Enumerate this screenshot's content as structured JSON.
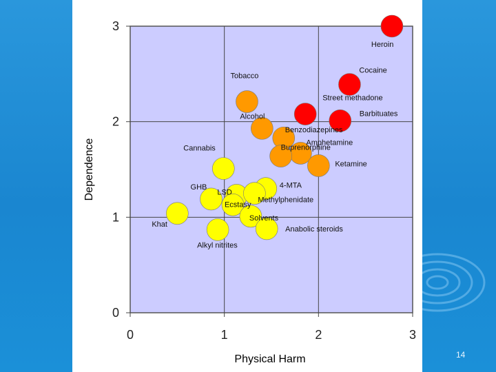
{
  "slide": {
    "page_number": "14",
    "background_color": "#1f8fd6"
  },
  "chart_data": {
    "type": "scatter",
    "title": "",
    "xlabel": "Physical Harm",
    "ylabel": "Dependence",
    "xlim": [
      0,
      3
    ],
    "ylim": [
      0,
      3
    ],
    "xticks": [
      "0",
      "1",
      "2",
      "3"
    ],
    "yticks": [
      "0",
      "1",
      "2",
      "3"
    ],
    "grid": true,
    "legend": "none",
    "colors": {
      "plot_background": "#ccccff",
      "high": "#ff0000",
      "medium": "#ff9900",
      "low": "#ffff00"
    },
    "points": [
      {
        "name": "Heroin",
        "x": 2.78,
        "y": 3.0,
        "group": "high"
      },
      {
        "name": "Cocaine",
        "x": 2.33,
        "y": 2.39,
        "group": "high"
      },
      {
        "name": "Street methadone",
        "x": 1.86,
        "y": 2.08,
        "group": "high"
      },
      {
        "name": "Barbituates",
        "x": 2.23,
        "y": 2.01,
        "group": "high"
      },
      {
        "name": "Tobacco",
        "x": 1.24,
        "y": 2.21,
        "group": "medium"
      },
      {
        "name": "Alcohol",
        "x": 1.4,
        "y": 1.93,
        "group": "medium"
      },
      {
        "name": "Benzodiazepines",
        "x": 1.63,
        "y": 1.83,
        "group": "medium"
      },
      {
        "name": "Amphetamine",
        "x": 1.81,
        "y": 1.67,
        "group": "medium"
      },
      {
        "name": "Buprenorphine",
        "x": 1.6,
        "y": 1.64,
        "group": "medium"
      },
      {
        "name": "Ketamine",
        "x": 2.0,
        "y": 1.54,
        "group": "medium"
      },
      {
        "name": "Cannabis",
        "x": 0.99,
        "y": 1.51,
        "group": "low"
      },
      {
        "name": "4-MTA",
        "x": 1.44,
        "y": 1.3,
        "group": "low"
      },
      {
        "name": "LSD",
        "x": 1.13,
        "y": 1.23,
        "group": "low"
      },
      {
        "name": "Methylphenidate",
        "x": 1.32,
        "y": 1.25,
        "group": "low"
      },
      {
        "name": "GHB",
        "x": 0.86,
        "y": 1.19,
        "group": "low"
      },
      {
        "name": "Ecstasy",
        "x": 1.09,
        "y": 1.13,
        "group": "low"
      },
      {
        "name": "Solvents",
        "x": 1.28,
        "y": 1.01,
        "group": "low"
      },
      {
        "name": "Khat",
        "x": 0.5,
        "y": 1.04,
        "group": "low"
      },
      {
        "name": "Alkyl nitrites",
        "x": 0.93,
        "y": 0.87,
        "group": "low"
      },
      {
        "name": "Anabolic steroids",
        "x": 1.45,
        "y": 0.88,
        "group": "low"
      }
    ]
  }
}
